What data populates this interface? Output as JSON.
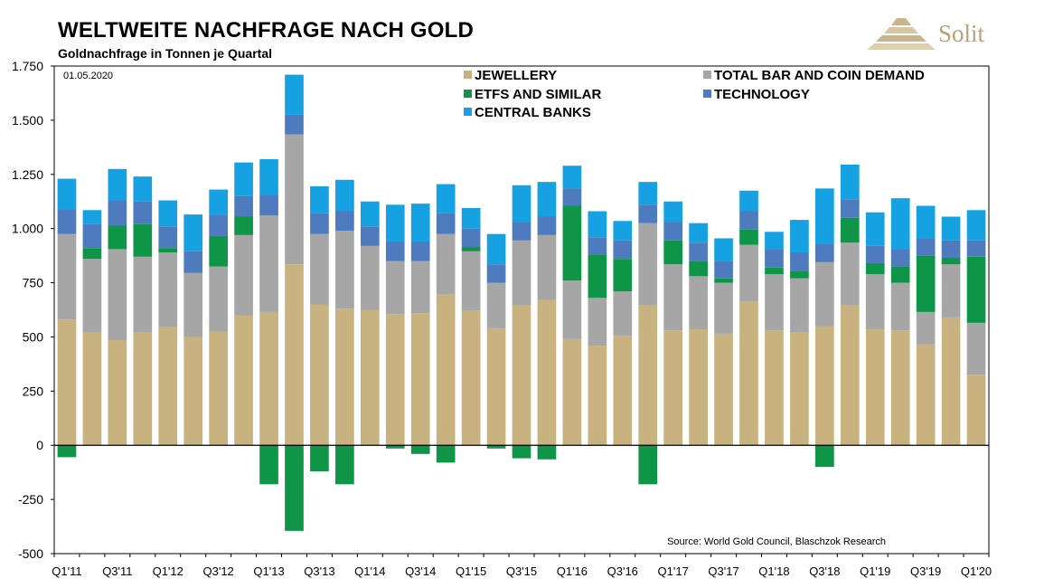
{
  "header": {
    "title": "WELTWEITE NACHFRAGE NACH GOLD",
    "subtitle": "Goldnachfrage in Tonnen je Quartal"
  },
  "logo": {
    "text": "Solit",
    "color": "#b7a27a"
  },
  "chart_data": {
    "type": "bar",
    "stacked": true,
    "title": "WELTWEITE NACHFRAGE NACH GOLD",
    "subtitle": "Goldnachfrage in Tonnen je Quartal",
    "date_label": "01.05.2020",
    "source": "Source: World Gold Council, Blaschzok Research",
    "ylim": [
      -500,
      1750
    ],
    "yticks": [
      -500,
      -250,
      0,
      250,
      500,
      750,
      "1.000",
      "1.250",
      "1.500",
      "1.750"
    ],
    "ytick_labels": [
      "-500",
      "-250",
      "0",
      "250",
      "500",
      "750",
      "1.000",
      "1.250",
      "1.500",
      "1.750"
    ],
    "ytick_values": [
      -500,
      -250,
      0,
      250,
      500,
      750,
      1000,
      1250,
      1500,
      1750
    ],
    "grid": false,
    "legend_position": "top",
    "categories": [
      "Q1'11",
      "Q2'11",
      "Q3'11",
      "Q4'11",
      "Q1'12",
      "Q2'12",
      "Q3'12",
      "Q4'12",
      "Q1'13",
      "Q2'13",
      "Q3'13",
      "Q4'13",
      "Q1'14",
      "Q2'14",
      "Q3'14",
      "Q4'14",
      "Q1'15",
      "Q2'15",
      "Q3'15",
      "Q4'15",
      "Q1'16",
      "Q2'16",
      "Q3'16",
      "Q4'16",
      "Q1'17",
      "Q2'17",
      "Q3'17",
      "Q4'17",
      "Q1'18",
      "Q2'18",
      "Q3'18",
      "Q4'18",
      "Q1'19",
      "Q2'19",
      "Q3'19",
      "Q4'19",
      "Q1'20"
    ],
    "xtick_labels": [
      "Q1'11",
      "Q3'11",
      "Q1'12",
      "Q3'12",
      "Q1'13",
      "Q3'13",
      "Q1'14",
      "Q3'14",
      "Q1'15",
      "Q3'15",
      "Q1'16",
      "Q3'16",
      "Q1'17",
      "Q3'17",
      "Q1'18",
      "Q3'18",
      "Q1'19",
      "Q3'19",
      "Q1'20"
    ],
    "series": [
      {
        "name": "JEWELLERY",
        "color": "#c8b27f",
        "values": [
          580,
          520,
          485,
          520,
          545,
          500,
          525,
          600,
          615,
          835,
          650,
          630,
          625,
          605,
          610,
          695,
          620,
          540,
          645,
          670,
          490,
          460,
          505,
          645,
          530,
          535,
          515,
          665,
          530,
          520,
          550,
          645,
          535,
          530,
          465,
          590,
          325
        ]
      },
      {
        "name": "TOTAL BAR AND COIN DEMAND",
        "color": "#a6a6a6",
        "values": [
          395,
          340,
          420,
          350,
          345,
          295,
          300,
          370,
          445,
          600,
          325,
          360,
          295,
          245,
          240,
          280,
          275,
          210,
          300,
          300,
          270,
          220,
          205,
          380,
          305,
          245,
          235,
          260,
          260,
          250,
          295,
          290,
          255,
          220,
          150,
          245,
          240
        ]
      },
      {
        "name": "ETFS AND SIMILAR",
        "color": "#0f9548",
        "values": [
          -55,
          50,
          110,
          150,
          20,
          0,
          140,
          85,
          -180,
          -395,
          -120,
          -180,
          0,
          -15,
          -40,
          -80,
          20,
          -15,
          -60,
          -65,
          345,
          200,
          150,
          -180,
          110,
          70,
          20,
          70,
          30,
          35,
          -100,
          115,
          50,
          75,
          260,
          30,
          305
        ]
      },
      {
        "name": "TECHNOLOGY",
        "color": "#4e7bbd",
        "values": [
          115,
          110,
          115,
          105,
          100,
          100,
          100,
          95,
          95,
          90,
          95,
          90,
          90,
          90,
          90,
          95,
          85,
          85,
          85,
          85,
          80,
          80,
          85,
          85,
          85,
          85,
          80,
          85,
          85,
          85,
          85,
          85,
          80,
          80,
          80,
          80,
          75
        ]
      },
      {
        "name": "CENTRAL BANKS",
        "color": "#15a1e2",
        "values": [
          140,
          65,
          145,
          115,
          120,
          170,
          115,
          155,
          165,
          185,
          125,
          145,
          115,
          170,
          175,
          135,
          95,
          140,
          170,
          160,
          105,
          120,
          90,
          105,
          95,
          90,
          105,
          95,
          80,
          150,
          255,
          160,
          155,
          235,
          150,
          110,
          140
        ]
      }
    ]
  }
}
